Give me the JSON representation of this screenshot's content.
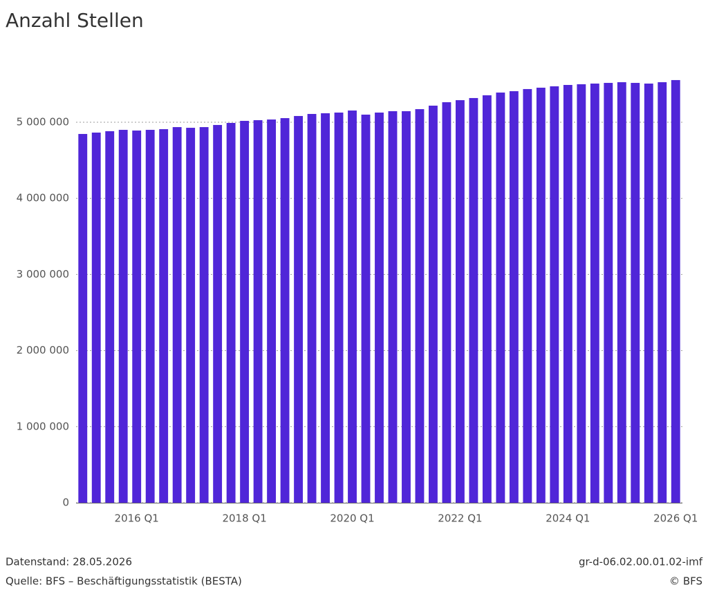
{
  "chart_data": {
    "type": "bar",
    "title": "Anzahl Stellen",
    "categories": [
      null,
      null,
      null,
      null,
      "2016 Q1",
      null,
      null,
      null,
      null,
      null,
      null,
      null,
      "2018 Q1",
      null,
      null,
      null,
      null,
      null,
      null,
      null,
      "2020 Q1",
      null,
      null,
      null,
      null,
      null,
      null,
      null,
      "2022 Q1",
      null,
      null,
      null,
      null,
      null,
      null,
      null,
      "2024 Q1",
      null,
      null,
      null,
      null,
      null,
      null,
      null,
      "2026 Q1"
    ],
    "values": [
      4846000,
      4864000,
      4882000,
      4900000,
      4891000,
      4900000,
      4909000,
      4936000,
      4927000,
      4936000,
      4964000,
      4991000,
      5018000,
      5027000,
      5036000,
      5054000,
      5082000,
      5109000,
      5118000,
      5127000,
      5154000,
      5100000,
      5127000,
      5145000,
      5145000,
      5172000,
      5218000,
      5263000,
      5290000,
      5318000,
      5354000,
      5390000,
      5408000,
      5436000,
      5454000,
      5472000,
      5490000,
      5499000,
      5508000,
      5517000,
      5526000,
      5517000,
      5508000,
      5526000,
      5554000
    ],
    "color": "#5026d8",
    "ylim": [
      0,
      5700000
    ],
    "yticks": [
      0,
      {
        "value": 1000000,
        "label": "1 000 000"
      },
      {
        "value": 2000000,
        "label": "2 000 000"
      },
      {
        "value": 3000000,
        "label": "3 000 000"
      },
      {
        "value": 4000000,
        "label": "4 000 000"
      },
      {
        "value": 5000000,
        "label": "5 000 000"
      }
    ],
    "grid": true,
    "footer_left": [
      "Datenstand: 28.05.2026",
      "Quelle: BFS – Beschäftigungsstatistik (BESTA)"
    ],
    "footer_right": [
      "gr-d-06.02.00.01.02-imf",
      "© BFS"
    ]
  }
}
